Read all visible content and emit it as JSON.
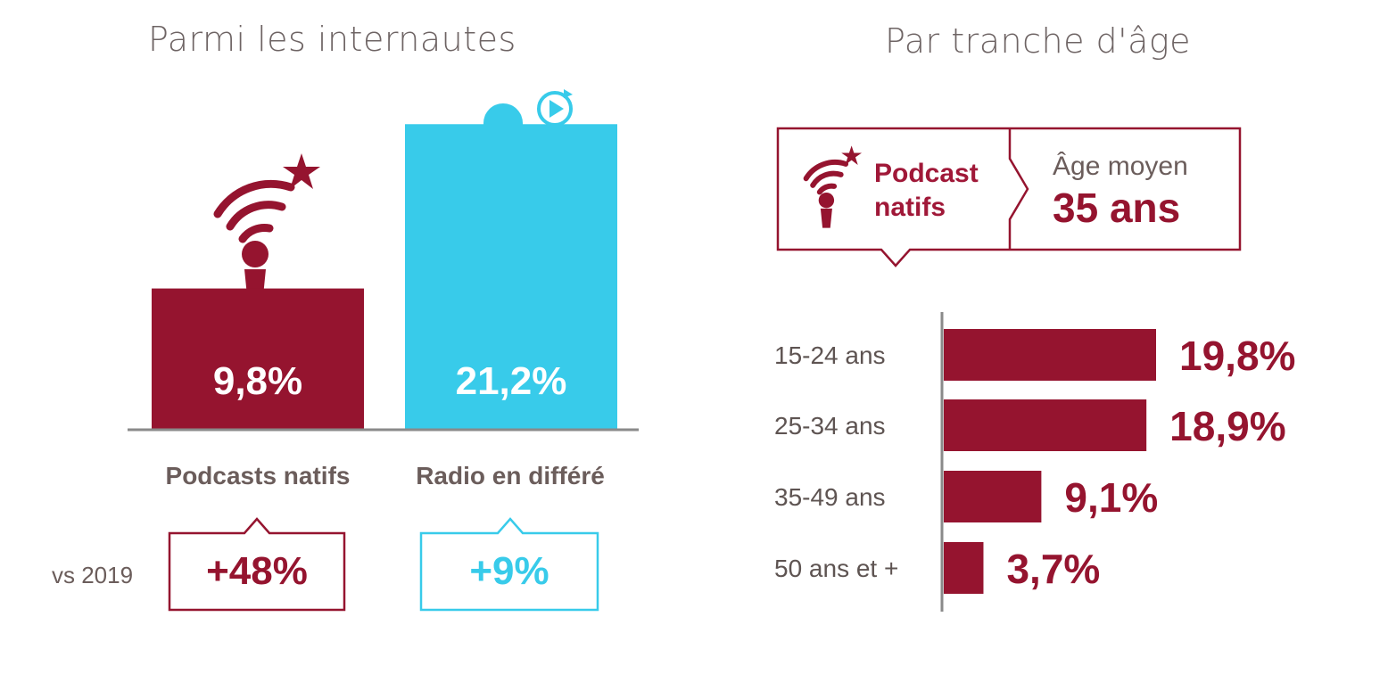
{
  "colors": {
    "podcast": "#95142f",
    "radio": "#38cbea",
    "grey_text": "#6b5d5b",
    "axis": "#8a8a8a"
  },
  "left": {
    "title": "Parmi les internautes",
    "vs_label": "vs 2019",
    "icons": [
      "podcast-antenna-star-icon",
      "microphone-replay-icon"
    ]
  },
  "right": {
    "title": "Par tranche d'âge",
    "box": {
      "label_line1": "Podcast",
      "label_line2": "natifs",
      "avg_label": "Âge moyen",
      "avg_value": "35 ans",
      "icon": "podcast-antenna-star-icon"
    }
  },
  "chart_data": [
    {
      "type": "bar",
      "categories": [
        "Podcasts natifs",
        "Radio en différé"
      ],
      "values": [
        9.8,
        21.2
      ],
      "value_labels": [
        "9,8%",
        "21,2%"
      ],
      "changes": [
        "+48%",
        "+9%"
      ],
      "ylim": [
        0,
        24
      ]
    },
    {
      "type": "bar",
      "orientation": "horizontal",
      "categories": [
        "15-24 ans",
        "25-34 ans",
        "35-49 ans",
        "50 ans et +"
      ],
      "values": [
        19.8,
        18.9,
        9.1,
        3.7
      ],
      "value_labels": [
        "19,8%",
        "18,9%",
        "9,1%",
        "3,7%"
      ],
      "xlim": [
        0,
        25
      ]
    }
  ]
}
